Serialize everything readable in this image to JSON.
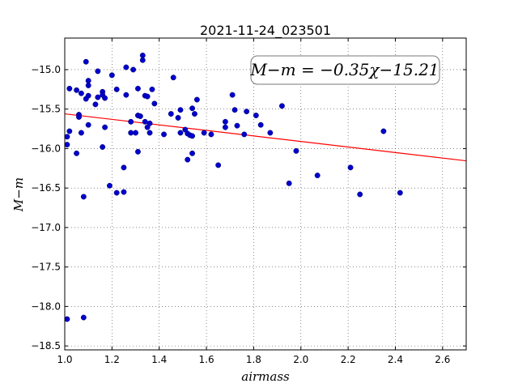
{
  "chart_data": {
    "type": "scatter",
    "title": "2021-11-24_023501",
    "xlabel": "airmass",
    "ylabel": "M−m",
    "xlim": [
      1.0,
      2.7
    ],
    "ylim": [
      -18.55,
      -14.6
    ],
    "ylim_note": "y axis inverted: -14.6 at top, -18.55 at bottom",
    "grid": true,
    "x_ticks": [
      1.0,
      1.2,
      1.4,
      1.6,
      1.8,
      2.0,
      2.2,
      2.4,
      2.6
    ],
    "x_tick_labels": [
      "1.0",
      "1.2",
      "1.4",
      "1.6",
      "1.8",
      "2.0",
      "2.2",
      "2.4",
      "2.6"
    ],
    "y_ticks": [
      -15.0,
      -15.5,
      -16.0,
      -16.5,
      -17.0,
      -17.5,
      -18.0,
      -18.5
    ],
    "y_tick_labels": [
      "−15.0",
      "−15.5",
      "−16.0",
      "−16.5",
      "−17.0",
      "−17.5",
      "−18.0",
      "−18.5"
    ],
    "annotation": "M−m = −0.35χ−15.21",
    "fit_line": {
      "slope": -0.35,
      "intercept": -15.21,
      "color": "#ff0000"
    },
    "marker_color": "#0000cc",
    "points": [
      [
        1.01,
        -15.85
      ],
      [
        1.01,
        -15.95
      ],
      [
        1.02,
        -15.78
      ],
      [
        1.02,
        -15.24
      ],
      [
        1.01,
        -18.16
      ],
      [
        1.05,
        -16.06
      ],
      [
        1.05,
        -15.26
      ],
      [
        1.06,
        -15.57
      ],
      [
        1.06,
        -15.6
      ],
      [
        1.07,
        -15.3
      ],
      [
        1.07,
        -15.8
      ],
      [
        1.08,
        -16.61
      ],
      [
        1.08,
        -18.14
      ],
      [
        1.09,
        -15.37
      ],
      [
        1.09,
        -14.9
      ],
      [
        1.1,
        -15.33
      ],
      [
        1.1,
        -15.14
      ],
      [
        1.1,
        -15.2
      ],
      [
        1.1,
        -15.7
      ],
      [
        1.13,
        -15.44
      ],
      [
        1.14,
        -15.35
      ],
      [
        1.14,
        -15.02
      ],
      [
        1.16,
        -15.28
      ],
      [
        1.16,
        -15.32
      ],
      [
        1.16,
        -15.98
      ],
      [
        1.17,
        -15.36
      ],
      [
        1.17,
        -15.73
      ],
      [
        1.19,
        -16.47
      ],
      [
        1.2,
        -15.07
      ],
      [
        1.22,
        -16.56
      ],
      [
        1.22,
        -15.25
      ],
      [
        1.25,
        -16.24
      ],
      [
        1.25,
        -16.55
      ],
      [
        1.26,
        -15.32
      ],
      [
        1.26,
        -14.97
      ],
      [
        1.28,
        -15.66
      ],
      [
        1.28,
        -15.8
      ],
      [
        1.29,
        -15.0
      ],
      [
        1.3,
        -15.8
      ],
      [
        1.31,
        -15.58
      ],
      [
        1.31,
        -16.04
      ],
      [
        1.31,
        -15.24
      ],
      [
        1.32,
        -15.59
      ],
      [
        1.33,
        -14.82
      ],
      [
        1.33,
        -14.88
      ],
      [
        1.34,
        -15.33
      ],
      [
        1.34,
        -15.66
      ],
      [
        1.35,
        -15.34
      ],
      [
        1.35,
        -15.73
      ],
      [
        1.36,
        -15.68
      ],
      [
        1.36,
        -15.8
      ],
      [
        1.37,
        -15.25
      ],
      [
        1.38,
        -15.43
      ],
      [
        1.42,
        -15.82
      ],
      [
        1.45,
        -15.56
      ],
      [
        1.46,
        -15.1
      ],
      [
        1.48,
        -15.61
      ],
      [
        1.49,
        -15.8
      ],
      [
        1.49,
        -15.51
      ],
      [
        1.51,
        -15.76
      ],
      [
        1.52,
        -16.14
      ],
      [
        1.52,
        -15.81
      ],
      [
        1.53,
        -15.83
      ],
      [
        1.54,
        -16.06
      ],
      [
        1.54,
        -15.84
      ],
      [
        1.54,
        -15.49
      ],
      [
        1.55,
        -15.56
      ],
      [
        1.56,
        -15.38
      ],
      [
        1.59,
        -15.8
      ],
      [
        1.62,
        -15.82
      ],
      [
        1.65,
        -16.21
      ],
      [
        1.68,
        -15.73
      ],
      [
        1.68,
        -15.66
      ],
      [
        1.71,
        -15.32
      ],
      [
        1.72,
        -15.51
      ],
      [
        1.73,
        -15.71
      ],
      [
        1.76,
        -15.82
      ],
      [
        1.77,
        -15.53
      ],
      [
        1.81,
        -15.58
      ],
      [
        1.83,
        -15.7
      ],
      [
        1.87,
        -15.8
      ],
      [
        1.92,
        -15.46
      ],
      [
        1.95,
        -16.44
      ],
      [
        1.98,
        -16.03
      ],
      [
        2.07,
        -16.34
      ],
      [
        2.21,
        -16.24
      ],
      [
        2.25,
        -16.58
      ],
      [
        2.35,
        -15.78
      ],
      [
        2.42,
        -16.56
      ]
    ]
  }
}
